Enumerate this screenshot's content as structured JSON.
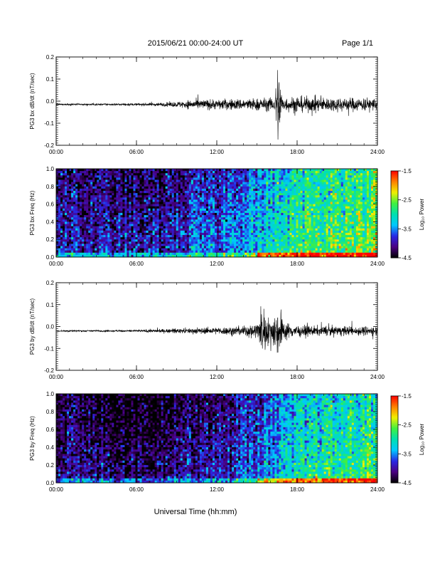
{
  "header": {
    "title": "2015/06/21  00:00-24:00 UT",
    "page_label": "Page 1/1"
  },
  "footer": {
    "xlabel": "Universal Time (hh:mm)"
  },
  "colorbar": {
    "label": "Log₁₀ Power",
    "ticks": [
      "-1.5",
      "-2.5",
      "-3.5",
      "-4.5"
    ],
    "range": [
      -4.5,
      -1.5
    ],
    "colors": [
      "#000000",
      "#4b0082",
      "#2828e6",
      "#00c8ff",
      "#00e0b0",
      "#40f040",
      "#f0f000",
      "#ff8000",
      "#ff0000"
    ]
  },
  "chart_data": [
    {
      "type": "line",
      "ylabel": "PG3 bx dB/dt (nT/sec)",
      "ylim": [
        -0.2,
        0.2
      ],
      "yticks": [
        "0.2",
        "0.1",
        "0.0",
        "-0.1",
        "-0.2"
      ],
      "xlim": [
        "00:00",
        "24:00"
      ],
      "xticks": [
        "00:00",
        "06:00",
        "12:00",
        "18:00",
        "24:00"
      ],
      "color": "#000000",
      "envelope_hours": [
        0,
        2,
        4,
        6,
        8,
        9,
        10,
        12,
        14,
        16,
        16.3,
        16.6,
        16.9,
        18,
        20,
        22,
        24
      ],
      "envelope_amplitude": [
        0.004,
        0.004,
        0.004,
        0.005,
        0.008,
        0.012,
        0.02,
        0.022,
        0.025,
        0.028,
        0.03,
        0.2,
        0.03,
        0.035,
        0.03,
        0.03,
        0.028
      ],
      "baseline": -0.015
    },
    {
      "type": "heatmap",
      "ylabel": "PG3 bx Freq (Hz)",
      "ylim": [
        0.0,
        1.0
      ],
      "yticks": [
        "1.0",
        "0.8",
        "0.6",
        "0.4",
        "0.2",
        "0.0"
      ],
      "xlim": [
        "00:00",
        "24:00"
      ],
      "xticks": [
        "00:00",
        "06:00",
        "12:00",
        "18:00",
        "24:00"
      ],
      "zlim": [
        -4.5,
        -1.5
      ],
      "power_profile_hours": [
        0,
        2,
        4,
        6,
        8,
        10,
        12,
        14,
        16,
        18,
        20,
        22,
        24
      ],
      "power_profile_log": [
        -3.7,
        -3.9,
        -3.9,
        -4.0,
        -3.9,
        -3.7,
        -3.6,
        -3.3,
        -3.1,
        -2.8,
        -2.6,
        -2.6,
        -2.5
      ]
    },
    {
      "type": "line",
      "ylabel": "PG3 by dB/dt (nT/sec)",
      "ylim": [
        -0.2,
        0.2
      ],
      "yticks": [
        "0.2",
        "0.1",
        "0.0",
        "-0.1",
        "-0.2"
      ],
      "xlim": [
        "00:00",
        "24:00"
      ],
      "xticks": [
        "00:00",
        "06:00",
        "12:00",
        "18:00",
        "24:00"
      ],
      "color": "#000000",
      "envelope_hours": [
        0,
        2,
        4,
        6,
        8,
        10,
        12,
        14,
        15,
        15.4,
        15.8,
        16.2,
        16.6,
        17,
        18,
        20,
        22,
        24
      ],
      "envelope_amplitude": [
        0.004,
        0.004,
        0.004,
        0.005,
        0.008,
        0.012,
        0.015,
        0.022,
        0.035,
        0.11,
        0.06,
        0.07,
        0.11,
        0.04,
        0.025,
        0.02,
        0.02,
        0.02
      ],
      "baseline": -0.02
    },
    {
      "type": "heatmap",
      "ylabel": "PG3 by Freq (Hz)",
      "ylim": [
        0.0,
        1.0
      ],
      "yticks": [
        "1.0",
        "0.8",
        "0.6",
        "0.4",
        "0.2",
        "0.0"
      ],
      "xlim": [
        "00:00",
        "24:00"
      ],
      "xticks": [
        "00:00",
        "06:00",
        "12:00",
        "18:00",
        "24:00"
      ],
      "zlim": [
        -4.5,
        -1.5
      ],
      "power_profile_hours": [
        0,
        2,
        4,
        6,
        8,
        10,
        12,
        14,
        16,
        18,
        20,
        22,
        24
      ],
      "power_profile_log": [
        -3.9,
        -4.1,
        -4.1,
        -4.2,
        -4.1,
        -3.9,
        -3.9,
        -3.7,
        -3.4,
        -3.1,
        -2.9,
        -2.8,
        -2.6
      ]
    }
  ]
}
